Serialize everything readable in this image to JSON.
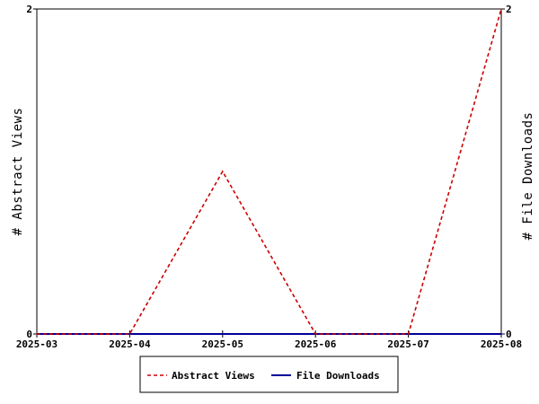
{
  "chart_data": {
    "type": "line",
    "x": [
      "2025-03",
      "2025-04",
      "2025-05",
      "2025-06",
      "2025-07",
      "2025-08"
    ],
    "y_left_label": "# Abstract Views",
    "y_right_label": "# File Downloads",
    "y_left_ticks": [
      "0",
      "2"
    ],
    "y_right_ticks": [
      "0",
      "2"
    ],
    "ylim_left": [
      0,
      2
    ],
    "ylim_right": [
      0,
      2
    ],
    "grid": false,
    "legend_position": "bottom-center",
    "series": [
      {
        "name": "Abstract Views",
        "axis": "left",
        "style": "dashed",
        "color": "#cc0000",
        "values": [
          0,
          0,
          1,
          0,
          0,
          2
        ]
      },
      {
        "name": "File Downloads",
        "axis": "right",
        "style": "solid",
        "color": "#000099",
        "values": [
          0,
          0,
          0,
          0,
          0,
          0
        ]
      }
    ]
  }
}
